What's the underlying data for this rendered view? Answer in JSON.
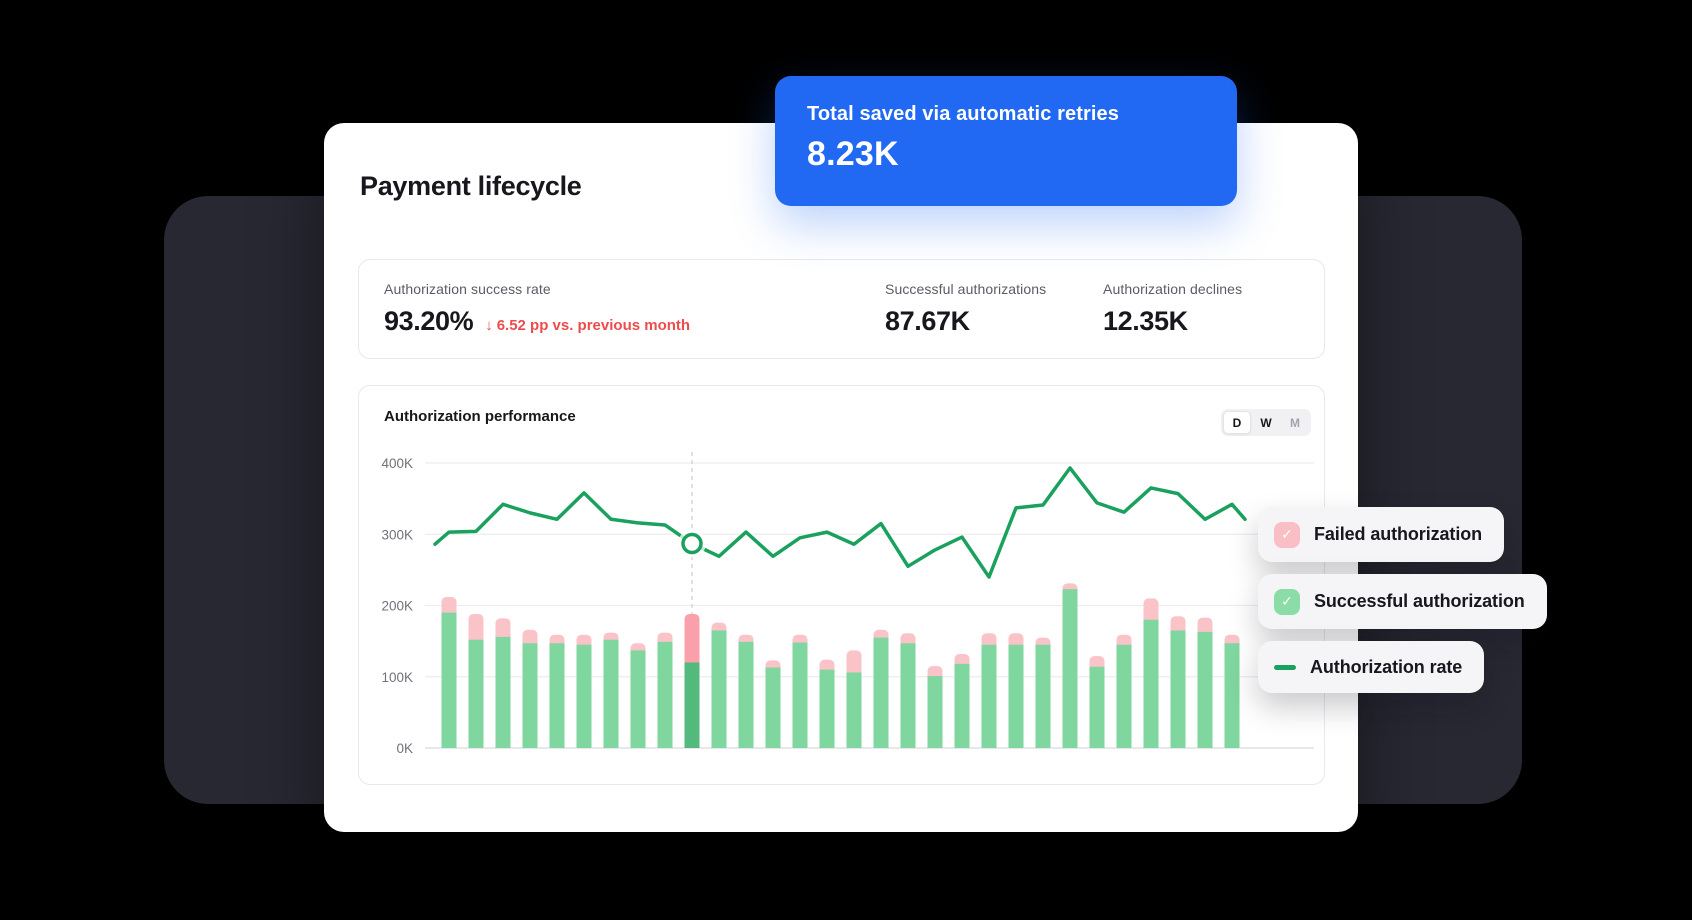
{
  "callout": {
    "title": "Total saved via automatic retries",
    "value": "8.23K",
    "bg_color": "#2169f2"
  },
  "card": {
    "title": "Payment lifecycle"
  },
  "stats": [
    {
      "label": "Authorization success rate",
      "value": "93.20%",
      "delta_arrow": "↓",
      "delta": "6.52 pp vs. previous month",
      "delta_color": "#ee4c4c"
    },
    {
      "label": "Successful authorizations",
      "value": "87.67K"
    },
    {
      "label": "Authorization declines",
      "value": "12.35K"
    }
  ],
  "chart_card": {
    "title": "Authorization performance",
    "range_toggle": {
      "options": [
        "D",
        "W",
        "M"
      ],
      "selected": "D"
    }
  },
  "legend": [
    {
      "label": "Failed authorization",
      "swatch": "checkbox",
      "color": "#f9bfc5",
      "checked": true
    },
    {
      "label": "Successful authorization",
      "swatch": "checkbox",
      "color": "#8bdca7",
      "checked": true
    },
    {
      "label": "Authorization rate",
      "swatch": "line",
      "color": "#1ba15e"
    }
  ],
  "chart_data": {
    "type": "bar",
    "subtype": "stacked bars + line overlay",
    "title": "Authorization performance",
    "x_axis_labels": "none",
    "y_ticks": [
      {
        "label": "400K",
        "value": 400
      },
      {
        "label": "300K",
        "value": 300
      },
      {
        "label": "200K",
        "value": 200
      },
      {
        "label": "100K",
        "value": 100
      },
      {
        "label": "0K",
        "value": 0
      }
    ],
    "ylim": [
      0,
      400
    ],
    "unit": "K",
    "grid": true,
    "legend_position": "right-overlay",
    "highlight_index": 9,
    "marker": {
      "index": 9,
      "value": 287
    },
    "series": [
      {
        "name": "Successful authorization",
        "type": "bar",
        "color": "#80d69f",
        "highlight_color": "#54b97d",
        "values": [
          190,
          152,
          156,
          147,
          147,
          145,
          152,
          137,
          149,
          120,
          165,
          149,
          113,
          148,
          110,
          106,
          155,
          147,
          101,
          118,
          145,
          145,
          145,
          223,
          114,
          145,
          180,
          165,
          163,
          147
        ]
      },
      {
        "name": "Failed authorization",
        "type": "bar-stacked-on-top",
        "color": "#fac3c8",
        "highlight_color": "#f9a0aa",
        "values": [
          22,
          36,
          26,
          19,
          12,
          14,
          10,
          10,
          13,
          68,
          11,
          10,
          10,
          11,
          14,
          31,
          11,
          14,
          14,
          14,
          16,
          16,
          10,
          8,
          15,
          14,
          30,
          20,
          20,
          12
        ]
      },
      {
        "name": "Authorization rate",
        "type": "line",
        "color": "#1ba15e",
        "values": [
          303,
          304,
          342,
          330,
          321,
          358,
          321,
          316,
          313,
          287,
          269,
          303,
          269,
          295,
          303,
          286,
          315,
          255,
          278,
          296,
          240,
          337,
          341,
          393,
          344,
          331,
          365,
          357,
          321,
          342
        ],
        "edge_start_value": 286,
        "edge_end_value": 321
      }
    ],
    "style": {
      "grid_color": "#ededf1",
      "axis_color": "#d9d9df",
      "tick_text_color": "#71717b",
      "dashed_guide_color": "#d2d2da",
      "marker_fill": "#ffffff"
    }
  }
}
